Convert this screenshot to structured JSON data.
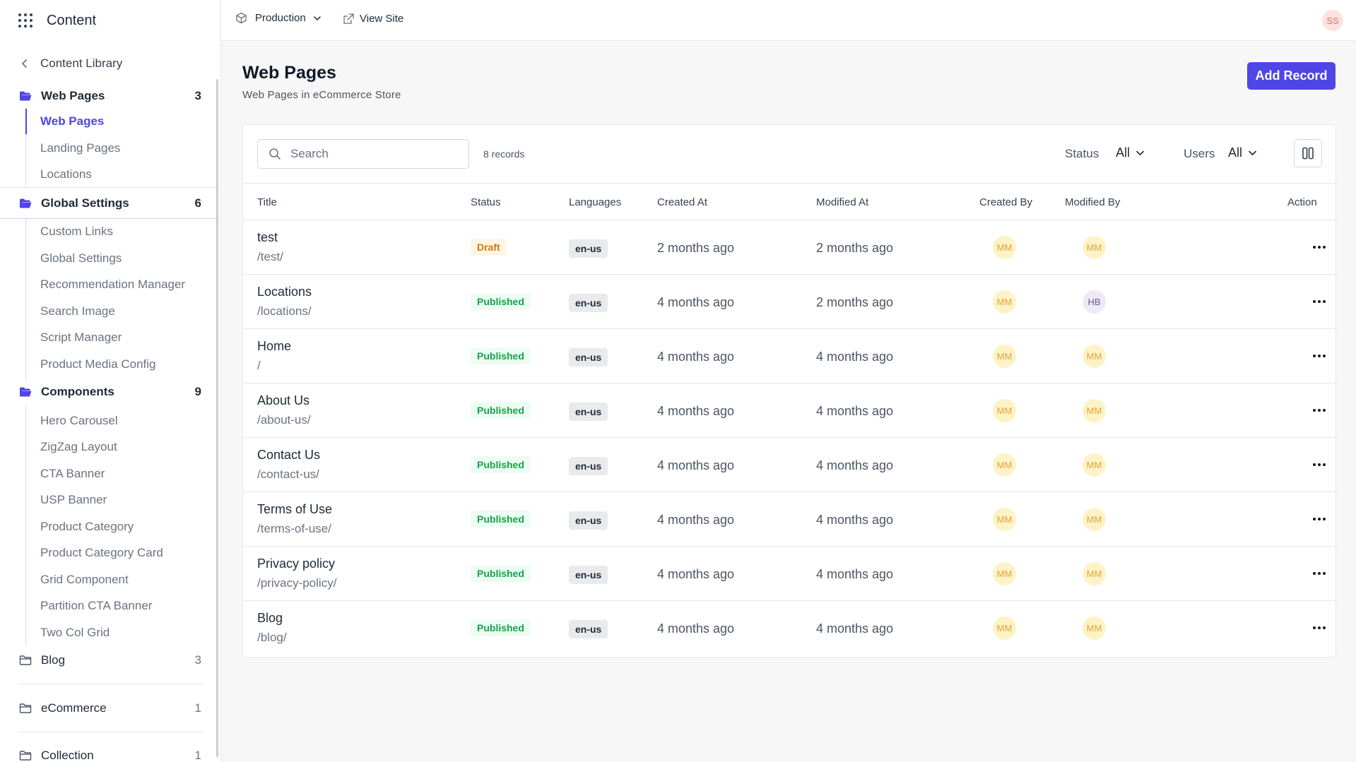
{
  "app": {
    "title": "Content"
  },
  "sidebar": {
    "back_label": "Content Library",
    "sections": [
      {
        "label": "Web Pages",
        "count": "3",
        "items": [
          "Web Pages",
          "Landing Pages",
          "Locations"
        ]
      },
      {
        "label": "Global Settings",
        "count": "6",
        "items": [
          "Custom Links",
          "Global Settings",
          "Recommendation Manager",
          "Search Image",
          "Script Manager",
          "Product Media Config"
        ]
      },
      {
        "label": "Components",
        "count": "9",
        "items": [
          "Hero Carousel",
          "ZigZag Layout",
          "CTA Banner",
          "USP Banner",
          "Product Category",
          "Product Category Card",
          "Grid Component",
          "Partition CTA Banner",
          "Two Col Grid"
        ]
      },
      {
        "label": "Blog",
        "count": "3"
      },
      {
        "label": "eCommerce",
        "count": "1"
      },
      {
        "label": "Collection",
        "count": "1"
      }
    ]
  },
  "topbar": {
    "environment": "Production",
    "view_site": "View Site",
    "user_initials": "SS"
  },
  "page": {
    "title": "Web Pages",
    "subtitle": "Web Pages in eCommerce Store",
    "add_button": "Add Record"
  },
  "toolbar": {
    "search_placeholder": "Search",
    "records_count": "8 records",
    "status_label": "Status",
    "status_value": "All",
    "users_label": "Users",
    "users_value": "All"
  },
  "table": {
    "columns": [
      "Title",
      "Status",
      "Languages",
      "Created At",
      "Modified At",
      "Created By",
      "Modified By",
      "Action"
    ],
    "rows": [
      {
        "title": "test",
        "path": "/test/",
        "status": "Draft",
        "language": "en-us",
        "created_at": "2 months ago",
        "modified_at": "2 months ago",
        "created_by": "MM",
        "modified_by": "MM"
      },
      {
        "title": "Locations",
        "path": "/locations/",
        "status": "Published",
        "language": "en-us",
        "created_at": "4 months ago",
        "modified_at": "2 months ago",
        "created_by": "MM",
        "modified_by": "HB"
      },
      {
        "title": "Home",
        "path": "/",
        "status": "Published",
        "language": "en-us",
        "created_at": "4 months ago",
        "modified_at": "4 months ago",
        "created_by": "MM",
        "modified_by": "MM"
      },
      {
        "title": "About Us",
        "path": "/about-us/",
        "status": "Published",
        "language": "en-us",
        "created_at": "4 months ago",
        "modified_at": "4 months ago",
        "created_by": "MM",
        "modified_by": "MM"
      },
      {
        "title": "Contact Us",
        "path": "/contact-us/",
        "status": "Published",
        "language": "en-us",
        "created_at": "4 months ago",
        "modified_at": "4 months ago",
        "created_by": "MM",
        "modified_by": "MM"
      },
      {
        "title": "Terms of Use",
        "path": "/terms-of-use/",
        "status": "Published",
        "language": "en-us",
        "created_at": "4 months ago",
        "modified_at": "4 months ago",
        "created_by": "MM",
        "modified_by": "MM"
      },
      {
        "title": "Privacy policy",
        "path": "/privacy-policy/",
        "status": "Published",
        "language": "en-us",
        "created_at": "4 months ago",
        "modified_at": "4 months ago",
        "created_by": "MM",
        "modified_by": "MM"
      },
      {
        "title": "Blog",
        "path": "/blog/",
        "status": "Published",
        "language": "en-us",
        "created_at": "4 months ago",
        "modified_at": "4 months ago",
        "created_by": "MM",
        "modified_by": "MM"
      }
    ]
  },
  "colors": {
    "accent": "#4f46e5",
    "draft": "#d97706",
    "published": "#16a34a"
  }
}
